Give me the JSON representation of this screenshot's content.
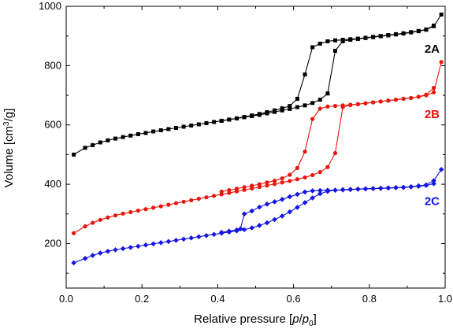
{
  "chart_data": {
    "type": "line",
    "title": "",
    "xlabel": "Relative pressure [p/p0]",
    "ylabel": "Volume [cm3/g]",
    "xlim": [
      0.0,
      1.0
    ],
    "ylim": [
      50,
      1000
    ],
    "xticks": [
      0.0,
      0.2,
      0.4,
      0.6,
      0.8,
      1.0
    ],
    "yticks": [
      200,
      400,
      600,
      800,
      1000
    ],
    "xtick_labels": [
      "0.0",
      "0.2",
      "0.4",
      "0.6",
      "0.8",
      "1.0"
    ],
    "ytick_labels": [
      "200",
      "400",
      "600",
      "800",
      "1000"
    ],
    "grid": false,
    "series": [
      {
        "name": "2A",
        "color": "#000000",
        "marker": "square",
        "adsorption": {
          "x": [
            0.02,
            0.05,
            0.07,
            0.09,
            0.11,
            0.13,
            0.15,
            0.17,
            0.19,
            0.21,
            0.23,
            0.25,
            0.27,
            0.29,
            0.31,
            0.33,
            0.35,
            0.37,
            0.39,
            0.41,
            0.43,
            0.45,
            0.47,
            0.49,
            0.51,
            0.53,
            0.55,
            0.57,
            0.59,
            0.61,
            0.63,
            0.65,
            0.67,
            0.69,
            0.71,
            0.73,
            0.75,
            0.77,
            0.79,
            0.81,
            0.83,
            0.85,
            0.87,
            0.89,
            0.91,
            0.93,
            0.95,
            0.97,
            0.99
          ],
          "y": [
            500,
            523,
            532,
            541,
            548,
            554,
            559,
            564,
            569,
            573,
            578,
            582,
            586,
            590,
            594,
            598,
            602,
            606,
            610,
            614,
            618,
            622,
            626,
            630,
            634,
            639,
            644,
            649,
            654,
            660,
            666,
            674,
            685,
            706,
            850,
            882,
            887,
            890,
            893,
            896,
            899,
            902,
            905,
            908,
            912,
            916,
            921,
            933,
            972
          ]
        },
        "desorption": {
          "x": [
            0.97,
            0.95,
            0.93,
            0.91,
            0.89,
            0.87,
            0.85,
            0.83,
            0.81,
            0.79,
            0.77,
            0.75,
            0.73,
            0.71,
            0.69,
            0.67,
            0.65,
            0.63,
            0.61,
            0.59,
            0.57,
            0.55,
            0.53,
            0.51,
            0.49,
            0.47,
            0.45,
            0.43,
            0.41
          ],
          "y": [
            935,
            922,
            917,
            913,
            909,
            906,
            903,
            900,
            897,
            894,
            891,
            889,
            887,
            885,
            882,
            874,
            862,
            770,
            688,
            664,
            656,
            649,
            643,
            637,
            632,
            627,
            622,
            618,
            614
          ]
        }
      },
      {
        "name": "2B",
        "color": "#e8160c",
        "marker": "circle",
        "adsorption": {
          "x": [
            0.02,
            0.05,
            0.07,
            0.09,
            0.11,
            0.13,
            0.15,
            0.17,
            0.19,
            0.21,
            0.23,
            0.25,
            0.27,
            0.29,
            0.31,
            0.33,
            0.35,
            0.37,
            0.39,
            0.41,
            0.43,
            0.45,
            0.47,
            0.49,
            0.51,
            0.53,
            0.55,
            0.57,
            0.59,
            0.61,
            0.63,
            0.65,
            0.67,
            0.69,
            0.71,
            0.73,
            0.75,
            0.77,
            0.79,
            0.81,
            0.83,
            0.85,
            0.87,
            0.89,
            0.91,
            0.93,
            0.95,
            0.97,
            0.99
          ],
          "y": [
            235,
            258,
            270,
            280,
            288,
            295,
            301,
            306,
            311,
            316,
            321,
            326,
            331,
            336,
            341,
            346,
            351,
            356,
            361,
            366,
            371,
            376,
            381,
            386,
            391,
            396,
            401,
            406,
            411,
            417,
            423,
            431,
            441,
            458,
            505,
            660,
            667,
            670,
            673,
            676,
            679,
            682,
            685,
            688,
            691,
            695,
            700,
            710,
            812
          ]
        },
        "desorption": {
          "x": [
            0.97,
            0.95,
            0.93,
            0.91,
            0.89,
            0.87,
            0.85,
            0.83,
            0.81,
            0.79,
            0.77,
            0.75,
            0.73,
            0.71,
            0.69,
            0.67,
            0.65,
            0.63,
            0.61,
            0.59,
            0.57,
            0.55,
            0.53,
            0.51,
            0.49,
            0.47,
            0.45,
            0.43,
            0.41
          ],
          "y": [
            725,
            702,
            695,
            691,
            688,
            685,
            682,
            679,
            676,
            673,
            670,
            668,
            666,
            664,
            662,
            655,
            620,
            510,
            455,
            432,
            420,
            412,
            406,
            400,
            395,
            390,
            385,
            380,
            375
          ]
        }
      },
      {
        "name": "2C",
        "color": "#1515e6",
        "marker": "diamond",
        "adsorption": {
          "x": [
            0.02,
            0.05,
            0.07,
            0.09,
            0.11,
            0.13,
            0.15,
            0.17,
            0.19,
            0.21,
            0.23,
            0.25,
            0.27,
            0.29,
            0.31,
            0.33,
            0.35,
            0.37,
            0.39,
            0.41,
            0.43,
            0.45,
            0.47,
            0.49,
            0.51,
            0.53,
            0.55,
            0.57,
            0.59,
            0.61,
            0.63,
            0.65,
            0.67,
            0.69,
            0.71,
            0.73,
            0.75,
            0.77,
            0.79,
            0.81,
            0.83,
            0.85,
            0.87,
            0.89,
            0.91,
            0.93,
            0.95,
            0.97,
            0.99
          ],
          "y": [
            135,
            150,
            160,
            168,
            174,
            179,
            183,
            187,
            191,
            195,
            199,
            203,
            207,
            211,
            215,
            219,
            223,
            227,
            231,
            235,
            239,
            243,
            247,
            253,
            261,
            270,
            281,
            293,
            307,
            322,
            338,
            354,
            368,
            376,
            380,
            382,
            383,
            384,
            385,
            386,
            387,
            388,
            389,
            390,
            392,
            395,
            398,
            412,
            450
          ]
        },
        "desorption": {
          "x": [
            0.97,
            0.95,
            0.93,
            0.91,
            0.89,
            0.87,
            0.85,
            0.83,
            0.81,
            0.79,
            0.77,
            0.75,
            0.73,
            0.71,
            0.69,
            0.67,
            0.65,
            0.63,
            0.61,
            0.59,
            0.57,
            0.55,
            0.53,
            0.51,
            0.49,
            0.47,
            0.46,
            0.45,
            0.43,
            0.41
          ],
          "y": [
            402,
            396,
            393,
            391,
            389,
            388,
            387,
            386,
            385,
            384,
            383,
            382,
            381,
            380,
            380,
            379,
            378,
            374,
            366,
            358,
            349,
            341,
            333,
            323,
            310,
            300,
            250,
            246,
            242,
            238
          ]
        }
      }
    ]
  }
}
